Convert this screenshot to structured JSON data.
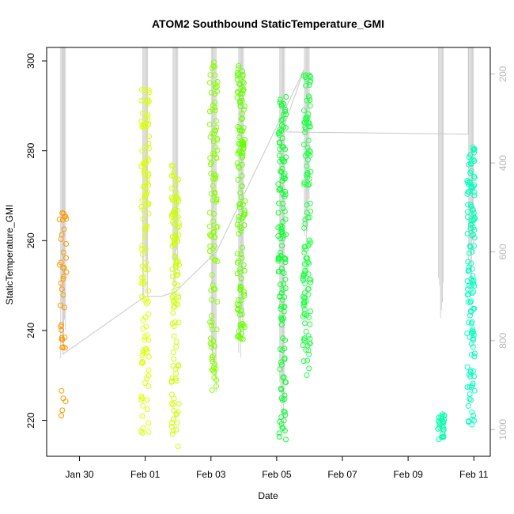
{
  "chart_data": {
    "type": "scatter",
    "title": "ATOM2 Southbound StaticTemperature_GMI",
    "xlabel": "Date",
    "ylabel": "StaticTemperature_GMI",
    "xlim": [
      "2016-01-29 00:00",
      "2016-02-11 12:00"
    ],
    "ylim": [
      212,
      303
    ],
    "y2lim": [
      1060,
      140
    ],
    "x_ticks": [
      {
        "date": "2016-01-30",
        "label": "Jan 30"
      },
      {
        "date": "2016-02-01",
        "label": "Feb 01"
      },
      {
        "date": "2016-02-03",
        "label": "Feb 03"
      },
      {
        "date": "2016-02-05",
        "label": "Feb 05"
      },
      {
        "date": "2016-02-07",
        "label": "Feb 07"
      },
      {
        "date": "2016-02-09",
        "label": "Feb 09"
      },
      {
        "date": "2016-02-11",
        "label": "Feb 11"
      }
    ],
    "y_ticks": [
      220,
      240,
      260,
      280,
      300
    ],
    "y2_ticks": [
      200,
      400,
      600,
      800,
      1000
    ],
    "grid": false,
    "legend": "none",
    "secondary_line_color": "#c8c8c8",
    "profiles": [
      {
        "date": "2016-01-29 12:00",
        "color": "#ff9900",
        "temp_range": [
          217,
          269
        ],
        "n": 40,
        "p_max": 840
      },
      {
        "date": "2016-02-01 00:00",
        "color": "#ddff00",
        "temp_range": [
          217,
          294
        ],
        "n": 120,
        "p_max": 720
      },
      {
        "date": "2016-02-01 22:00",
        "color": "#ccff00",
        "temp_range": [
          214,
          277
        ],
        "n": 110,
        "p_max": 710
      },
      {
        "date": "2016-02-03 02:00",
        "color": "#88ff00",
        "temp_range": [
          226,
          300
        ],
        "n": 110,
        "p_max": 920
      },
      {
        "date": "2016-02-03 22:00",
        "color": "#66ff00",
        "temp_range": [
          238,
          300
        ],
        "n": 130,
        "p_max": 860
      },
      {
        "date": "2016-02-05 04:00",
        "color": "#11ff33",
        "temp_range": [
          215,
          292
        ],
        "n": 140,
        "p_max": 1000
      },
      {
        "date": "2016-02-05 22:00",
        "color": "#22ff44",
        "temp_range": [
          230,
          298
        ],
        "n": 130,
        "p_max": 580
      },
      {
        "date": "2016-02-10 00:00",
        "color": "#00ffaa",
        "temp_range": [
          215,
          222
        ],
        "n": 25,
        "p_max": 770
      },
      {
        "date": "2016-02-10 22:00",
        "color": "#00ffbb",
        "temp_range": [
          219,
          281
        ],
        "n": 130,
        "p_max": 690
      }
    ],
    "flight_track": [
      {
        "date": "2016-01-29 12:00",
        "pressure": 140
      },
      {
        "date": "2016-01-29 12:00",
        "pressure": 830
      },
      {
        "date": "2016-02-01 00:00",
        "pressure": 700
      },
      {
        "date": "2016-02-01 12:00",
        "pressure": 700
      },
      {
        "date": "2016-02-01 22:00",
        "pressure": 690
      },
      {
        "date": "2016-02-03 04:00",
        "pressure": 600
      },
      {
        "date": "2016-02-05 20:00",
        "pressure": 190
      },
      {
        "date": "2016-02-05 04:00",
        "pressure": 330
      },
      {
        "date": "2016-02-10 20:00",
        "pressure": 335
      },
      {
        "date": "2016-02-10 20:00",
        "pressure": 140
      }
    ]
  }
}
